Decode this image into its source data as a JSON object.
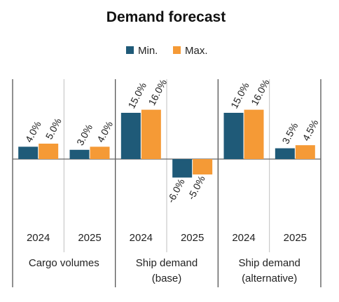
{
  "chart_data": {
    "type": "bar",
    "title": "Demand forecast",
    "series": [
      {
        "name": "Min.",
        "color": "#1f5a78"
      },
      {
        "name": "Max.",
        "color": "#f59a36"
      }
    ],
    "groups": [
      {
        "label_lines": [
          "Cargo volumes"
        ],
        "years": [
          {
            "year": "2024",
            "values": [
              4.0,
              5.0
            ],
            "labels": [
              "4.0%",
              "5.0%"
            ]
          },
          {
            "year": "2025",
            "values": [
              3.0,
              4.0
            ],
            "labels": [
              "3.0%",
              "4.0%"
            ]
          }
        ]
      },
      {
        "label_lines": [
          "Ship demand",
          "(base)"
        ],
        "years": [
          {
            "year": "2024",
            "values": [
              15.0,
              16.0
            ],
            "labels": [
              "15.0%",
              "16.0%"
            ]
          },
          {
            "year": "2025",
            "values": [
              -6.0,
              -5.0
            ],
            "labels": [
              "-6.0%",
              "-5.0%"
            ]
          }
        ]
      },
      {
        "label_lines": [
          "Ship demand",
          "(alternative)"
        ],
        "years": [
          {
            "year": "2024",
            "values": [
              15.0,
              16.0
            ],
            "labels": [
              "15.0%",
              "16.0%"
            ]
          },
          {
            "year": "2025",
            "values": [
              3.5,
              4.5
            ],
            "labels": [
              "3.5%",
              "4.5%"
            ]
          }
        ]
      }
    ],
    "legend_position": "top",
    "grid": false
  }
}
